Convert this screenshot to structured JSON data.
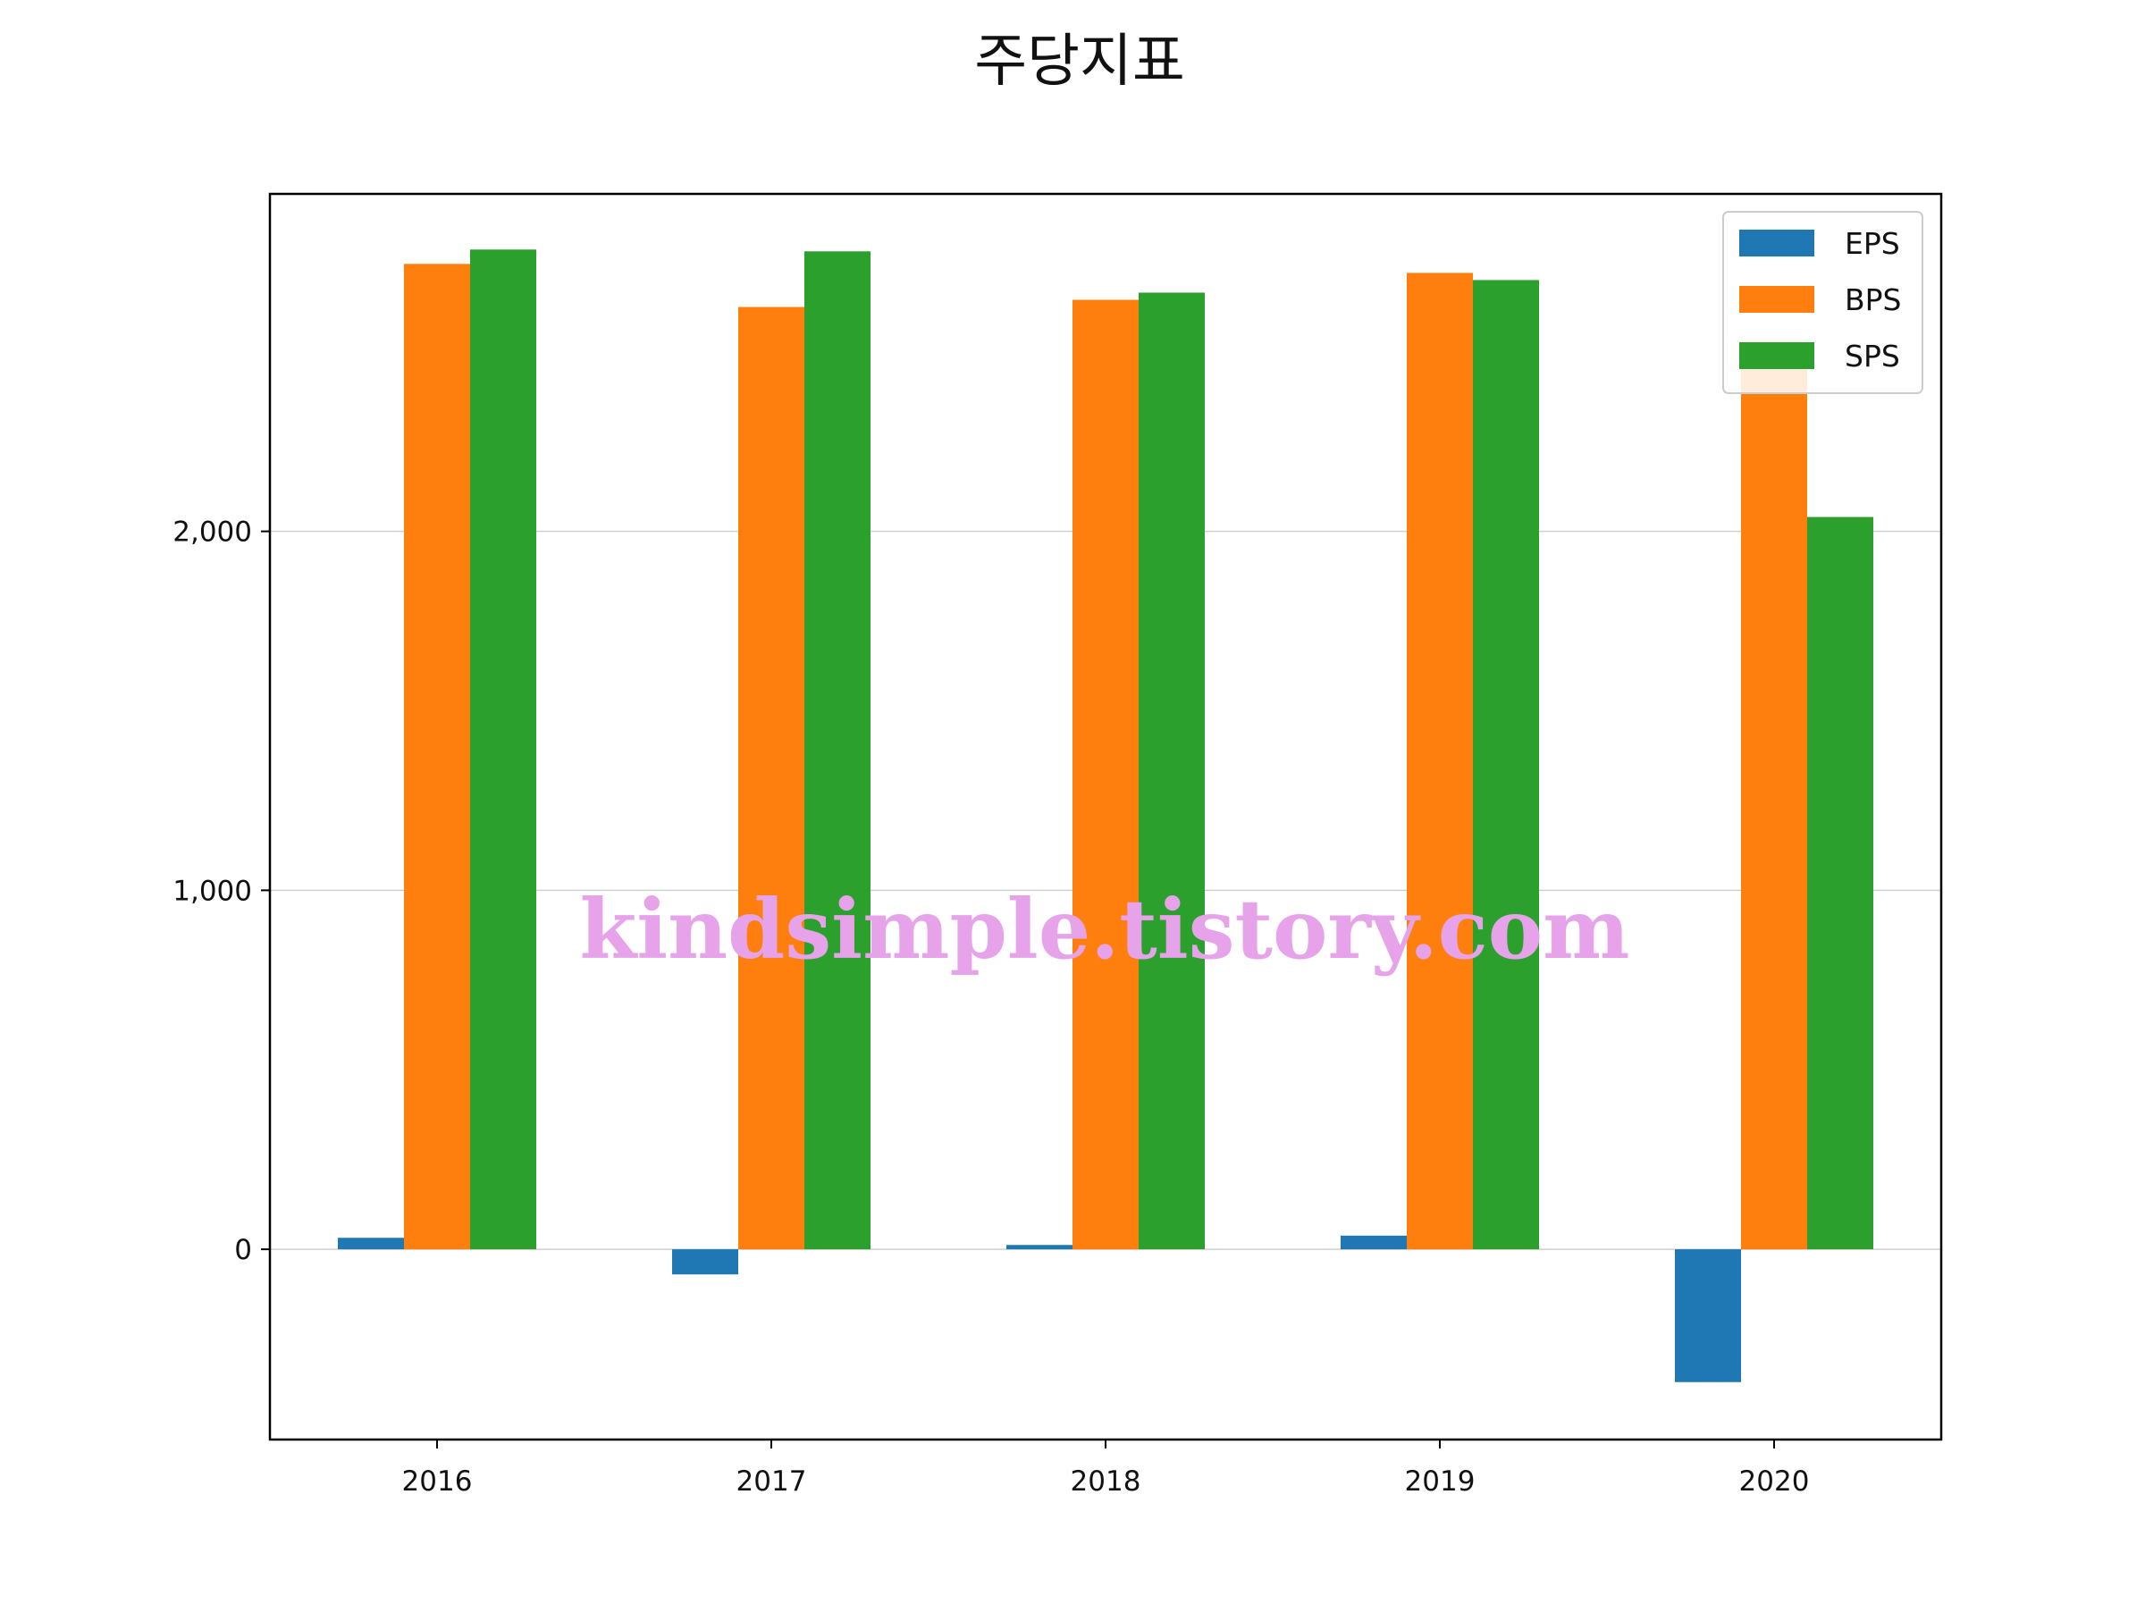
{
  "chart_data": {
    "type": "bar",
    "title": "주당지표",
    "xlabel": "",
    "ylabel": "",
    "categories": [
      "2016",
      "2017",
      "2018",
      "2019",
      "2020"
    ],
    "series": [
      {
        "name": "EPS",
        "color": "#1f77b4",
        "values": [
          32,
          -70,
          12,
          38,
          -370
        ]
      },
      {
        "name": "BPS",
        "color": "#ff7f0e",
        "values": [
          2745,
          2625,
          2645,
          2720,
          2470
        ]
      },
      {
        "name": "SPS",
        "color": "#2ca02c",
        "values": [
          2785,
          2780,
          2665,
          2700,
          2040
        ]
      }
    ],
    "ylim": [
      -530,
      2940
    ],
    "yticks": [
      0,
      1000,
      2000
    ],
    "ytick_labels": [
      "0",
      "1,000",
      "2,000"
    ],
    "grid": "y",
    "legend_position": "top-right"
  },
  "watermark": "kindsimple.tistory.com"
}
